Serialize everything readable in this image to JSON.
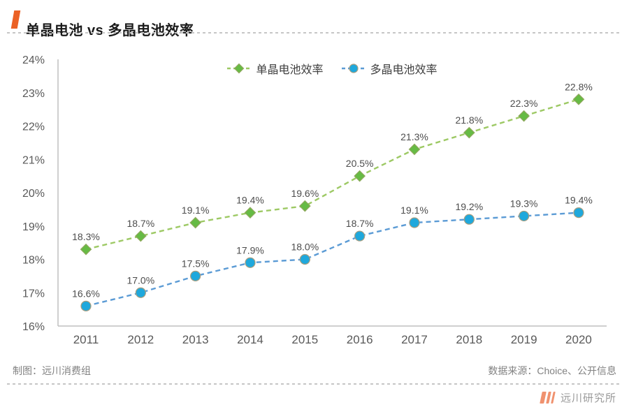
{
  "header": {
    "title": "单晶电池 vs 多晶电池效率"
  },
  "footer": {
    "credit": "制图：远川消费组",
    "source": "数据来源：Choice、公开信息",
    "brand": "远川研究所"
  },
  "colors": {
    "accent_orange": "#EB6125",
    "logo_orange": "#F0926F",
    "axis": "#BFBFBF",
    "tick_label": "#595959",
    "data_label": "#4d4d4d"
  },
  "chart_data": {
    "type": "line",
    "title": "单晶电池 vs 多晶电池效率",
    "x": [
      2011,
      2012,
      2013,
      2014,
      2015,
      2016,
      2017,
      2018,
      2019,
      2020
    ],
    "series": [
      {
        "name": "单晶电池效率",
        "marker": "diamond",
        "line_color": "#9DC964",
        "marker_color": "#66BB44",
        "marker_stroke": "#8FA85C",
        "values": [
          18.3,
          18.7,
          19.1,
          19.4,
          19.6,
          20.5,
          21.3,
          21.8,
          22.3,
          22.8
        ]
      },
      {
        "name": "多晶电池效率",
        "marker": "circle",
        "line_color": "#5B9BD5",
        "marker_color": "#1FA8DC",
        "marker_stroke": "#A89D7E",
        "values": [
          16.6,
          17.0,
          17.5,
          17.9,
          18.0,
          18.7,
          19.1,
          19.2,
          19.3,
          19.4
        ]
      }
    ],
    "ylim": [
      16,
      24
    ],
    "ytick_step": 1,
    "ytick_suffix": "%",
    "grid": false,
    "line_style": "dashed",
    "data_labels": true,
    "legend_position": "top-center"
  }
}
